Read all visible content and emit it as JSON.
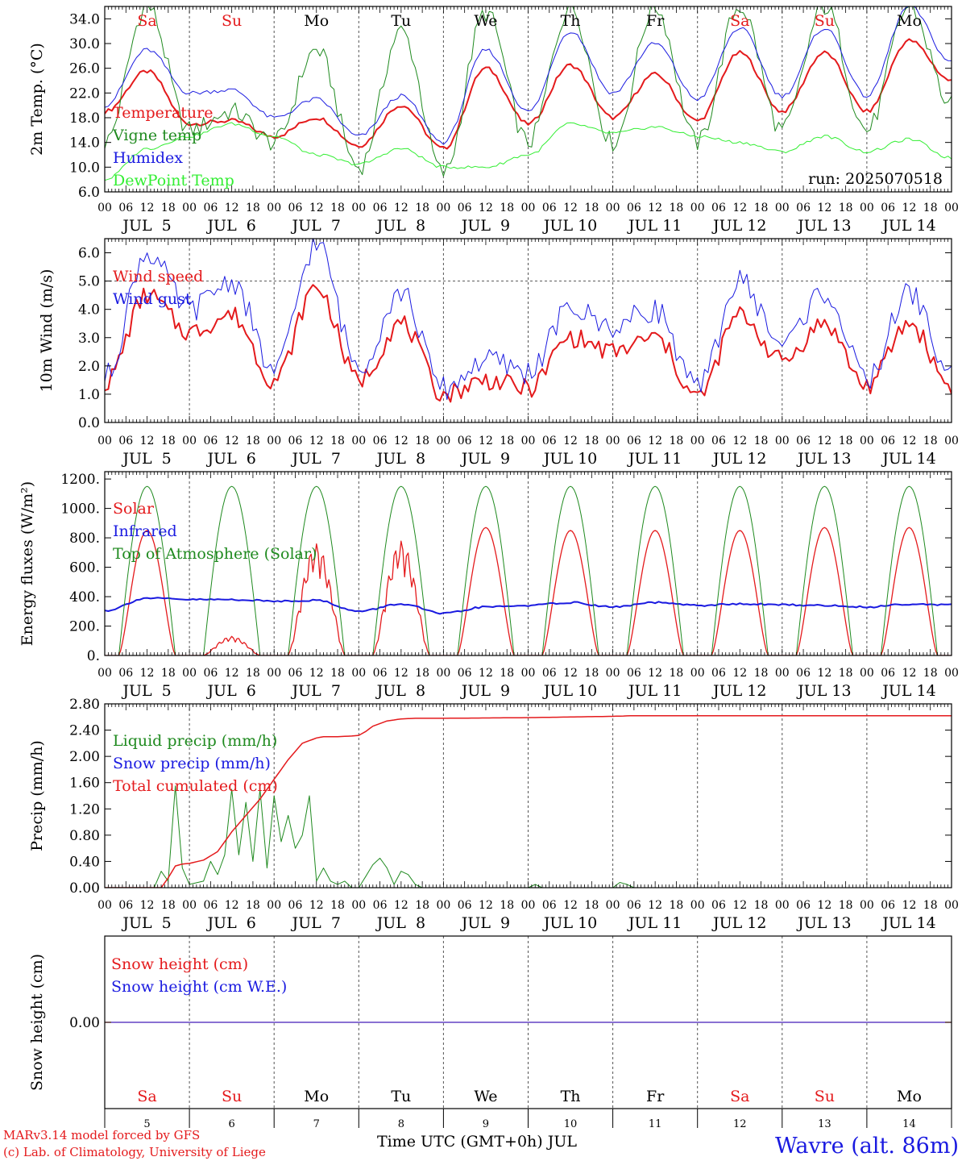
{
  "footer": {
    "model": "MARv3.14 model forced by GFS",
    "credit": "(c) Lab. of Climatology, University of Liege",
    "xtitle": "Time UTC (GMT+0h) JUL",
    "station": "Wavre (alt. 86m)"
  },
  "days": [
    "Sa",
    "Su",
    "Mo",
    "Tu",
    "We",
    "Th",
    "Fr",
    "Sa",
    "Su",
    "Mo"
  ],
  "weekend_flags": [
    true,
    true,
    false,
    false,
    false,
    false,
    false,
    true,
    true,
    false
  ],
  "day_numbers": [
    "5",
    "6",
    "7",
    "8",
    "9",
    "10",
    "11",
    "12",
    "13",
    "14"
  ],
  "date_labels": [
    "JUL  5",
    "JUL  6",
    "JUL  7",
    "JUL  8",
    "JUL  9",
    "JUL 10",
    "JUL 11",
    "JUL 12",
    "JUL 13",
    "JUL 14"
  ],
  "hour_ticks": [
    "00",
    "06",
    "12",
    "18"
  ],
  "hour_end": "00",
  "colors": {
    "red": "#e41a1c",
    "green": "#1f8a1f",
    "blue": "#1a1ae0",
    "lime": "#33ee33"
  },
  "chart_data": [
    {
      "type": "line",
      "ylabel": "2m Temp. (°C)",
      "ylim": [
        6,
        36
      ],
      "yticks": [
        6,
        10,
        14,
        18,
        22,
        26,
        30,
        34
      ],
      "ytick_labels": [
        "6.0",
        "10.0",
        "14.0",
        "18.0",
        "22.0",
        "26.0",
        "30.0",
        "34.0"
      ],
      "annotation": "run: 2025070518",
      "x_hours": [
        0,
        12,
        24,
        36,
        48,
        60,
        72,
        84,
        96,
        108,
        120,
        132,
        144,
        156,
        168,
        180,
        192,
        204,
        216,
        228,
        240
      ],
      "series": [
        {
          "name": "Temperature",
          "color": "#e41a1c",
          "width": 2,
          "values": [
            19,
            25.5,
            17,
            17.5,
            15,
            18,
            13.5,
            20,
            13,
            26,
            17,
            26.5,
            18,
            25,
            17.5,
            28.5,
            19,
            28.5,
            19,
            30.5,
            24
          ]
        },
        {
          "name": "Vigne temp",
          "color": "#1f8a1f",
          "width": 1,
          "values": [
            14,
            36,
            16,
            19,
            14,
            29,
            10,
            32,
            9,
            35,
            14,
            36,
            14,
            36,
            14,
            36,
            16,
            36,
            16,
            36,
            20
          ]
        },
        {
          "name": "Humidex",
          "color": "#1a1ae0",
          "width": 1,
          "values": [
            20,
            29,
            22,
            22.5,
            18,
            21,
            15,
            21.5,
            14,
            29,
            19,
            32,
            22,
            30,
            21,
            32.5,
            21.5,
            32.5,
            21.5,
            36,
            27
          ]
        },
        {
          "name": "DewPoint Temp",
          "color": "#33ee33",
          "width": 1,
          "values": [
            8,
            13,
            15,
            17,
            15,
            12,
            10.5,
            13,
            10,
            10,
            12,
            17,
            15.5,
            16.5,
            15,
            14,
            12.5,
            15,
            12.5,
            14.5,
            11.5
          ]
        }
      ]
    },
    {
      "type": "line",
      "ylabel": "10m Wind (m/s)",
      "ylim": [
        0,
        6.5
      ],
      "yticks": [
        0,
        1,
        2,
        3,
        4,
        5,
        6
      ],
      "ytick_labels": [
        "0.0",
        "1.0",
        "2.0",
        "3.0",
        "4.0",
        "5.0",
        "6.0"
      ],
      "hline": 5,
      "x_hours": [
        0,
        12,
        24,
        36,
        48,
        60,
        72,
        84,
        96,
        108,
        120,
        132,
        144,
        156,
        168,
        180,
        192,
        204,
        216,
        228,
        240
      ],
      "series": [
        {
          "name": "Wind speed",
          "color": "#e41a1c",
          "width": 2,
          "values": [
            1.4,
            4.5,
            3.2,
            3.8,
            1.5,
            4.8,
            1.5,
            3.5,
            1.0,
            1.5,
            1.2,
            3.0,
            2.5,
            3.0,
            0.9,
            3.8,
            2.2,
            3.5,
            1.3,
            3.5,
            1.3
          ]
        },
        {
          "name": "Wind gust",
          "color": "#1a1ae0",
          "width": 1,
          "values": [
            1.6,
            6.0,
            4.0,
            5.0,
            1.8,
            6.3,
            2.0,
            4.6,
            1.2,
            2.2,
            1.8,
            4.0,
            3.4,
            4.0,
            1.2,
            5.0,
            2.8,
            4.6,
            1.5,
            4.6,
            1.7
          ]
        }
      ]
    },
    {
      "type": "line",
      "ylabel": "Energy fluxes (W/m²)",
      "ylim": [
        0,
        1250
      ],
      "yticks": [
        0,
        200,
        400,
        600,
        800,
        1000,
        1200
      ],
      "ytick_labels": [
        "0.",
        "200.",
        "400.",
        "600.",
        "800.",
        "1000.",
        "1200."
      ],
      "solar_peaks": [
        850,
        130,
        760,
        780,
        870,
        850,
        850,
        850,
        870,
        870
      ],
      "toa_peak": 1150,
      "sun_hours": [
        4,
        20
      ],
      "x_hours": [
        0,
        12,
        24,
        36,
        48,
        60,
        72,
        84,
        96,
        108,
        120,
        132,
        144,
        156,
        168,
        180,
        192,
        204,
        216,
        228,
        240
      ],
      "series": [
        {
          "name": "Solar",
          "color": "#e41a1c",
          "width": 1.3,
          "values": []
        },
        {
          "name": "Infrared",
          "color": "#1a1ae0",
          "width": 2,
          "values": [
            305,
            390,
            380,
            380,
            370,
            375,
            300,
            350,
            285,
            330,
            340,
            360,
            330,
            360,
            340,
            350,
            345,
            340,
            330,
            350,
            345
          ]
        },
        {
          "name": "Top of Atmosphere (Solar)",
          "color": "#1f8a1f",
          "width": 1,
          "values": []
        }
      ]
    },
    {
      "type": "line",
      "ylabel": "Precip (mm/h)",
      "ylim": [
        0,
        2.8
      ],
      "yticks": [
        0,
        0.4,
        0.8,
        1.2,
        1.6,
        2.0,
        2.4,
        2.8
      ],
      "ytick_labels": [
        "0.00",
        "0.40",
        "0.80",
        "1.20",
        "1.60",
        "2.00",
        "2.40",
        "2.80"
      ],
      "series": [
        {
          "name": "Liquid precip (mm/h)",
          "color": "#1f8a1f",
          "width": 1,
          "x_hours": [
            0,
            14,
            16,
            18,
            20,
            22,
            24,
            28,
            30,
            32,
            34,
            36,
            38,
            40,
            42,
            44,
            46,
            48,
            50,
            52,
            54,
            56,
            58,
            60,
            62,
            64,
            66,
            68,
            70,
            72,
            76,
            78,
            80,
            82,
            84,
            86,
            88,
            90,
            96,
            120,
            122,
            124,
            144,
            146,
            148,
            150,
            240
          ],
          "values": [
            0,
            0,
            0.25,
            0.1,
            1.55,
            0.3,
            0.05,
            0.1,
            0.4,
            0.2,
            0.5,
            1.5,
            0.5,
            1.3,
            0.4,
            1.5,
            0.3,
            1.4,
            0.7,
            1.1,
            0.6,
            0.8,
            1.4,
            0.1,
            0.3,
            0.1,
            0.05,
            0.1,
            0,
            0,
            0.35,
            0.45,
            0.3,
            0.05,
            0.25,
            0.2,
            0.05,
            0,
            0,
            0,
            0.05,
            0,
            0,
            0.08,
            0.05,
            0,
            0
          ]
        },
        {
          "name": "Snow precip (mm/h)",
          "color": "#1a1ae0",
          "width": 1,
          "x_hours": [
            0,
            240
          ],
          "values": [
            0,
            0
          ]
        },
        {
          "name": "Total cumulated (cm)",
          "color": "#e41a1c",
          "width": 1.5,
          "x_hours": [
            0,
            16,
            18,
            20,
            22,
            24,
            28,
            32,
            36,
            40,
            44,
            48,
            52,
            56,
            60,
            62,
            66,
            70,
            72,
            74,
            76,
            78,
            80,
            84,
            88,
            96,
            120,
            132,
            144,
            150,
            240
          ],
          "values": [
            0,
            0,
            0.15,
            0.33,
            0.36,
            0.37,
            0.42,
            0.55,
            0.85,
            1.1,
            1.35,
            1.65,
            1.95,
            2.2,
            2.28,
            2.3,
            2.3,
            2.31,
            2.32,
            2.38,
            2.46,
            2.5,
            2.54,
            2.57,
            2.58,
            2.58,
            2.59,
            2.6,
            2.61,
            2.62,
            2.62
          ]
        }
      ]
    },
    {
      "type": "line",
      "ylabel": "Snow height (cm)",
      "ylim": [
        -1,
        1
      ],
      "yticks": [
        0
      ],
      "ytick_labels": [
        "0.00"
      ],
      "x_hours": [
        0,
        240
      ],
      "series": [
        {
          "name": "Snow height (cm)",
          "color": "#e41a1c",
          "width": 1.2,
          "values": [
            0,
            0
          ]
        },
        {
          "name": "Snow height (cm W.E.)",
          "color": "#1a1ae0",
          "width": 1,
          "values": [
            0,
            0
          ]
        }
      ]
    }
  ]
}
